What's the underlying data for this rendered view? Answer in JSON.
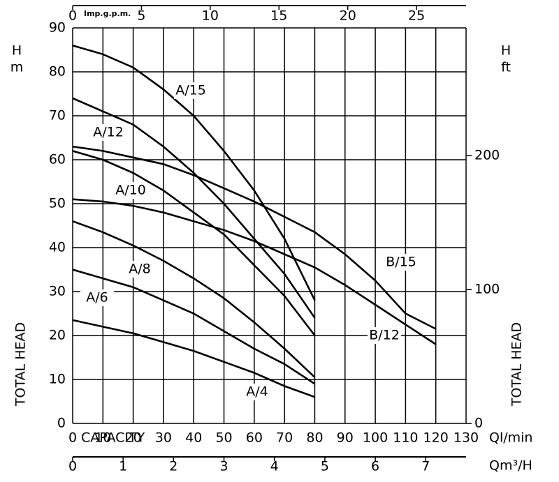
{
  "chart_data": {
    "type": "line",
    "xlabel": "Ql/min",
    "capacity_label": "CAPACITY",
    "ylabel": "H",
    "yunit": "m",
    "y2label": "H",
    "y2unit": "ft",
    "side_label": "TOTAL HEAD",
    "x2label": "Imp.g.p.m.",
    "x3label": "Qm³/H",
    "xlim": [
      0,
      130
    ],
    "xticks": [
      0,
      10,
      20,
      30,
      40,
      50,
      60,
      70,
      80,
      90,
      100,
      110,
      120,
      130
    ],
    "ylim": [
      0,
      90
    ],
    "yticks": [
      0,
      10,
      20,
      30,
      40,
      50,
      60,
      70,
      80,
      90
    ],
    "x2lim": [
      0,
      28.6
    ],
    "x2ticks": [
      0,
      5,
      10,
      15,
      20,
      25
    ],
    "x3lim": [
      0,
      7.8
    ],
    "x3ticks": [
      0,
      1,
      2,
      3,
      4,
      5,
      6,
      7
    ],
    "y2lim": [
      0,
      295.3
    ],
    "y2ticks": [
      0,
      100,
      200
    ],
    "grid": true,
    "series": [
      {
        "name": "A/15",
        "color": "#000000",
        "x": [
          0,
          10,
          20,
          30,
          40,
          50,
          60,
          70,
          80
        ],
        "values": [
          86,
          84,
          81,
          76,
          70,
          62,
          53,
          42,
          28
        ]
      },
      {
        "name": "A/12",
        "color": "#000000",
        "x": [
          0,
          10,
          20,
          30,
          40,
          50,
          60,
          70,
          80
        ],
        "values": [
          74,
          71,
          68,
          63,
          57,
          50,
          42,
          34,
          24
        ]
      },
      {
        "name": "A/10",
        "color": "#000000",
        "x": [
          0,
          10,
          20,
          30,
          40,
          50,
          60,
          70,
          80
        ],
        "values": [
          62,
          60,
          57,
          53,
          48,
          43,
          36,
          29,
          20
        ]
      },
      {
        "name": "A/8",
        "color": "#000000",
        "x": [
          0,
          10,
          20,
          30,
          40,
          50,
          60,
          70,
          80
        ],
        "values": [
          46,
          43.5,
          40.5,
          37,
          33,
          28.5,
          23,
          17,
          10.5
        ]
      },
      {
        "name": "A/6",
        "color": "#000000",
        "x": [
          0,
          10,
          20,
          30,
          40,
          50,
          60,
          70,
          80
        ],
        "values": [
          35,
          33,
          31,
          28,
          25,
          21,
          17,
          13.5,
          9
        ]
      },
      {
        "name": "A/4",
        "color": "#000000",
        "x": [
          0,
          10,
          20,
          30,
          40,
          50,
          60,
          70,
          80
        ],
        "values": [
          23.5,
          22,
          20.5,
          18.5,
          16.5,
          14,
          11.5,
          8.5,
          6
        ]
      },
      {
        "name": "B/15",
        "color": "#000000",
        "x": [
          0,
          10,
          20,
          30,
          40,
          50,
          60,
          70,
          80,
          90,
          100,
          110,
          120
        ],
        "values": [
          63,
          62,
          60.5,
          59,
          56.5,
          53.5,
          50.5,
          47,
          43.5,
          38.5,
          32.5,
          25,
          21.5
        ]
      },
      {
        "name": "B/12",
        "color": "#000000",
        "x": [
          0,
          10,
          20,
          30,
          40,
          50,
          60,
          70,
          80,
          90,
          100,
          110,
          120
        ],
        "values": [
          51,
          50.5,
          49.5,
          48,
          46,
          44,
          41.5,
          38.5,
          35.5,
          31.5,
          27,
          22.5,
          18
        ]
      }
    ]
  }
}
